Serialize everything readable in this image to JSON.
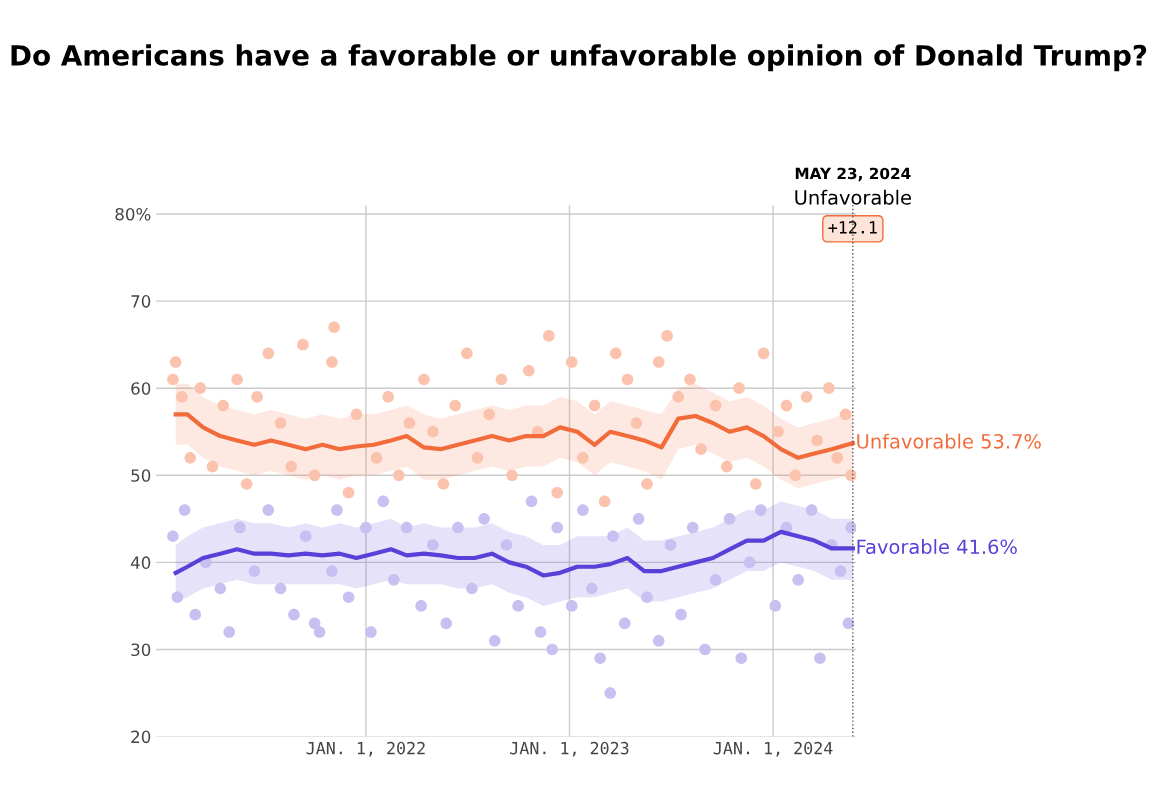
{
  "chart_data": {
    "type": "line",
    "title": "Do Americans have a favorable or unfavorable opinion of Donald Trump?",
    "annotations": [
      "Unfavorable",
      "+12.1"
    ],
    "series": [
      {
        "type": "scatter",
        "marker": "circle",
        "color": "#fbc3ad",
        "x": [
          "2021-01-20",
          "2021-01-25",
          "2021-02-05",
          "2021-02-20",
          "2021-03-10",
          "2021-04-01",
          "2021-04-20",
          "2021-05-15",
          "2021-06-01",
          "2021-06-20",
          "2021-07-10",
          "2021-08-01",
          "2021-08-20",
          "2021-09-10",
          "2021-10-01",
          "2021-11-01",
          "2021-11-05",
          "2021-12-01",
          "2021-12-15",
          "2022-01-20",
          "2022-02-10",
          "2022-03-01",
          "2022-03-20",
          "2022-04-15",
          "2022-05-01",
          "2022-05-20",
          "2022-06-10",
          "2022-07-01",
          "2022-07-20",
          "2022-08-10",
          "2022-09-01",
          "2022-09-20",
          "2022-10-20",
          "2022-11-05",
          "2022-11-25",
          "2022-12-10",
          "2023-01-05",
          "2023-01-25",
          "2023-02-15",
          "2023-03-05",
          "2023-03-25",
          "2023-04-15",
          "2023-05-01",
          "2023-05-20",
          "2023-06-10",
          "2023-06-25",
          "2023-07-15",
          "2023-08-05",
          "2023-08-25",
          "2023-09-20",
          "2023-10-10",
          "2023-11-01",
          "2023-12-01",
          "2023-12-15",
          "2024-01-10",
          "2024-01-25",
          "2024-02-10",
          "2024-03-01",
          "2024-03-20",
          "2024-04-10",
          "2024-04-25",
          "2024-05-10",
          "2024-05-20"
        ],
        "values": [
          61,
          63,
          59,
          52,
          60,
          51,
          58,
          61,
          49,
          59,
          64,
          56,
          51,
          65,
          50,
          63,
          67,
          48,
          57,
          52,
          59,
          50,
          56,
          61,
          55,
          49,
          58,
          64,
          52,
          57,
          61,
          50,
          62,
          55,
          66,
          48,
          63,
          52,
          58,
          47,
          64,
          61,
          56,
          49,
          63,
          66,
          59,
          61,
          53,
          58,
          51,
          60,
          49,
          64,
          55,
          58,
          50,
          59,
          54,
          60,
          52,
          57,
          50
        ]
      },
      {
        "type": "scatter",
        "marker": "circle",
        "color": "#c9bff0",
        "x": [
          "2021-01-20",
          "2021-01-28",
          "2021-02-10",
          "2021-03-01",
          "2021-03-20",
          "2021-04-15",
          "2021-05-01",
          "2021-05-20",
          "2021-06-15",
          "2021-07-10",
          "2021-08-01",
          "2021-08-25",
          "2021-09-15",
          "2021-10-01",
          "2021-10-10",
          "2021-11-01",
          "2021-11-10",
          "2021-12-01",
          "2022-01-01",
          "2022-01-10",
          "2022-02-01",
          "2022-02-20",
          "2022-03-15",
          "2022-04-10",
          "2022-05-01",
          "2022-05-25",
          "2022-06-15",
          "2022-07-10",
          "2022-08-01",
          "2022-08-20",
          "2022-09-10",
          "2022-10-01",
          "2022-10-25",
          "2022-11-10",
          "2022-12-01",
          "2022-12-10",
          "2023-01-05",
          "2023-01-25",
          "2023-02-10",
          "2023-02-25",
          "2023-03-15",
          "2023-03-20",
          "2023-04-10",
          "2023-05-05",
          "2023-05-20",
          "2023-06-10",
          "2023-07-01",
          "2023-07-20",
          "2023-08-10",
          "2023-09-01",
          "2023-09-20",
          "2023-10-15",
          "2023-11-05",
          "2023-11-20",
          "2023-12-10",
          "2024-01-05",
          "2024-01-25",
          "2024-02-15",
          "2024-03-10",
          "2024-03-25",
          "2024-04-15",
          "2024-05-01",
          "2024-05-15",
          "2024-05-20"
        ],
        "values": [
          43,
          36,
          46,
          34,
          40,
          37,
          32,
          44,
          39,
          46,
          37,
          34,
          43,
          33,
          32,
          39,
          46,
          36,
          44,
          32,
          47,
          38,
          44,
          35,
          42,
          33,
          44,
          37,
          45,
          31,
          42,
          35,
          47,
          32,
          30,
          44,
          35,
          46,
          37,
          29,
          25,
          43,
          33,
          45,
          36,
          31,
          42,
          34,
          44,
          30,
          38,
          45,
          29,
          40,
          46,
          35,
          44,
          38,
          46,
          29,
          42,
          39,
          33,
          44
        ]
      },
      {
        "name": "Unfavorable 53.7%",
        "color": "#f26b3a",
        "x": [
          "2021-01-25",
          "2021-02-15",
          "2021-03-15",
          "2021-04-15",
          "2021-05-15",
          "2021-06-15",
          "2021-07-15",
          "2021-08-15",
          "2021-09-15",
          "2021-10-15",
          "2021-11-15",
          "2021-12-15",
          "2022-01-15",
          "2022-02-15",
          "2022-03-15",
          "2022-04-15",
          "2022-05-15",
          "2022-06-15",
          "2022-07-15",
          "2022-08-15",
          "2022-09-15",
          "2022-10-15",
          "2022-11-15",
          "2022-12-15",
          "2023-01-15",
          "2023-02-15",
          "2023-03-15",
          "2023-04-15",
          "2023-05-15",
          "2023-06-15",
          "2023-07-15",
          "2023-08-15",
          "2023-09-15",
          "2023-10-15",
          "2023-11-15",
          "2023-12-15",
          "2024-01-15",
          "2024-02-15",
          "2024-03-15",
          "2024-04-15",
          "2024-05-23"
        ],
        "values": [
          57,
          57,
          55.5,
          54.5,
          54,
          53.5,
          54,
          53.5,
          53,
          53.5,
          53,
          53.3,
          53.5,
          54,
          54.5,
          53.2,
          53,
          53.5,
          54,
          54.5,
          54,
          54.5,
          54.5,
          55.5,
          55,
          53.5,
          55,
          54.5,
          54,
          53.2,
          56.5,
          56.8,
          56,
          55,
          55.5,
          54.5,
          53,
          52,
          52.5,
          53,
          53.7
        ],
        "lower": [
          53.5,
          53.5,
          52,
          51,
          50.5,
          50,
          50.5,
          50,
          49.5,
          50,
          49.5,
          50,
          50,
          50.5,
          51,
          49.5,
          49.5,
          50,
          50.5,
          51,
          50.5,
          51,
          51,
          52,
          51.5,
          50,
          51.5,
          51,
          50.5,
          49.5,
          53,
          53.5,
          52.5,
          51.5,
          52,
          51,
          49.5,
          48.5,
          49,
          49.5,
          50
        ],
        "upper": [
          60.5,
          60.5,
          59,
          58,
          57.5,
          57,
          57.5,
          57,
          56.5,
          57,
          56.5,
          57,
          57,
          57.5,
          58,
          57,
          56.5,
          57,
          57.5,
          58,
          57.5,
          58,
          58,
          59,
          58.5,
          57,
          58.5,
          58,
          57.5,
          57,
          60,
          60.5,
          59.5,
          58.5,
          59,
          58,
          56.5,
          55.5,
          56,
          56.5,
          57.5
        ]
      },
      {
        "name": "Favorable 41.6%",
        "color": "#5a3fd8",
        "x": [
          "2021-01-25",
          "2021-02-15",
          "2021-03-15",
          "2021-04-15",
          "2021-05-15",
          "2021-06-15",
          "2021-07-15",
          "2021-08-15",
          "2021-09-15",
          "2021-10-15",
          "2021-11-15",
          "2021-12-15",
          "2022-01-15",
          "2022-02-15",
          "2022-03-15",
          "2022-04-15",
          "2022-05-15",
          "2022-06-15",
          "2022-07-15",
          "2022-08-15",
          "2022-09-15",
          "2022-10-15",
          "2022-11-15",
          "2022-12-15",
          "2023-01-15",
          "2023-02-15",
          "2023-03-15",
          "2023-04-15",
          "2023-05-15",
          "2023-06-15",
          "2023-07-15",
          "2023-08-15",
          "2023-09-15",
          "2023-10-15",
          "2023-11-15",
          "2023-12-15",
          "2024-01-15",
          "2024-02-15",
          "2024-03-15",
          "2024-04-15",
          "2024-05-23"
        ],
        "values": [
          38.8,
          39.5,
          40.5,
          41,
          41.5,
          41,
          41,
          40.8,
          41,
          40.8,
          41,
          40.5,
          41,
          41.5,
          40.8,
          41,
          40.8,
          40.5,
          40.5,
          41,
          40,
          39.5,
          38.5,
          38.8,
          39.5,
          39.5,
          39.8,
          40.5,
          39,
          39,
          39.5,
          40,
          40.5,
          41.5,
          42.5,
          42.5,
          43.5,
          43,
          42.5,
          41.6,
          41.6
        ],
        "lower": [
          35.5,
          36,
          37,
          37.5,
          38,
          37.5,
          37.5,
          37.5,
          37.5,
          37.5,
          37.5,
          37,
          37.5,
          38,
          37.5,
          37.5,
          37.5,
          37,
          37,
          37.5,
          36.5,
          36,
          35,
          35.5,
          36,
          36,
          36.5,
          37,
          35.5,
          35.5,
          36,
          36.5,
          37,
          38,
          39,
          39,
          40,
          39.5,
          39,
          38,
          38
        ],
        "upper": [
          42,
          43,
          44,
          44.5,
          45,
          44.5,
          44.5,
          44,
          44.5,
          44,
          44.5,
          44,
          44.5,
          45,
          44,
          44.5,
          44,
          44,
          44,
          44.5,
          43.5,
          43,
          42,
          42,
          43,
          43,
          43,
          44,
          42.5,
          42.5,
          43,
          43.5,
          44,
          45,
          46,
          46,
          47,
          46.5,
          46,
          45,
          45
        ]
      }
    ],
    "xlim": [
      "2020-12-21",
      "2024-05-29"
    ],
    "xticks": [
      {
        "value": "2022-01-01",
        "label": "JAN. 1, 2022"
      },
      {
        "value": "2023-01-01",
        "label": "JAN. 1, 2023"
      },
      {
        "value": "2024-01-01",
        "label": "JAN. 1, 2024"
      }
    ],
    "ylim": [
      20,
      81
    ],
    "yticks": [
      20,
      30,
      40,
      50,
      60,
      70,
      {
        "value": 80,
        "label": "80%"
      }
    ],
    "ref_lines": [
      {
        "axis": "x",
        "value": "2024-05-23",
        "label": "MAY 23, 2024",
        "color": "#555555",
        "line_style": "dotted"
      }
    ],
    "grid": true,
    "legend": false
  }
}
